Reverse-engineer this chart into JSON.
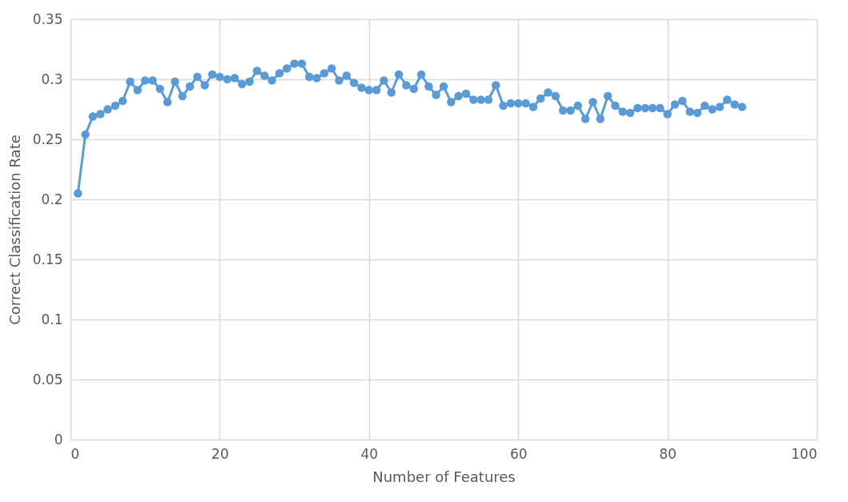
{
  "chart_data": {
    "type": "line",
    "xlabel": "Number of Features",
    "ylabel": "Correct Classification Rate",
    "x": [
      1,
      2,
      3,
      4,
      5,
      6,
      7,
      8,
      9,
      10,
      11,
      12,
      13,
      14,
      15,
      16,
      17,
      18,
      19,
      20,
      21,
      22,
      23,
      24,
      25,
      26,
      27,
      28,
      29,
      30,
      31,
      32,
      33,
      34,
      35,
      36,
      37,
      38,
      39,
      40,
      41,
      42,
      43,
      44,
      45,
      46,
      47,
      48,
      49,
      50,
      51,
      52,
      53,
      54,
      55,
      56,
      57,
      58,
      59,
      60,
      61,
      62,
      63,
      64,
      65,
      66,
      67,
      68,
      69,
      70,
      71,
      72,
      73,
      74,
      75,
      76,
      77,
      78,
      79,
      80,
      81,
      82,
      83,
      84,
      85,
      86,
      87,
      88,
      89,
      90
    ],
    "series": [
      {
        "color": "#5b9bd5",
        "values": [
          0.205,
          0.254,
          0.269,
          0.271,
          0.275,
          0.278,
          0.282,
          0.298,
          0.291,
          0.299,
          0.299,
          0.292,
          0.281,
          0.298,
          0.286,
          0.294,
          0.302,
          0.295,
          0.304,
          0.302,
          0.3,
          0.301,
          0.296,
          0.298,
          0.307,
          0.303,
          0.299,
          0.305,
          0.309,
          0.313,
          0.313,
          0.302,
          0.301,
          0.305,
          0.309,
          0.299,
          0.303,
          0.297,
          0.293,
          0.291,
          0.291,
          0.299,
          0.289,
          0.304,
          0.295,
          0.292,
          0.304,
          0.294,
          0.287,
          0.294,
          0.281,
          0.286,
          0.288,
          0.283,
          0.283,
          0.283,
          0.295,
          0.278,
          0.28,
          0.28,
          0.28,
          0.277,
          0.284,
          0.289,
          0.286,
          0.274,
          0.274,
          0.278,
          0.267,
          0.281,
          0.267,
          0.286,
          0.278,
          0.273,
          0.272,
          0.276,
          0.276,
          0.276,
          0.276,
          0.271,
          0.279,
          0.282,
          0.273,
          0.272,
          0.278,
          0.275,
          0.277,
          0.283,
          0.279,
          0.277
        ]
      }
    ],
    "xlim": [
      0,
      100
    ],
    "xticks": [
      0,
      20,
      40,
      60,
      80,
      100
    ],
    "ylim": [
      0,
      0.35
    ],
    "yticks": [
      0,
      0.05,
      0.1,
      0.15,
      0.2,
      0.25,
      0.3,
      0.35
    ],
    "grid": true,
    "marker": "circle",
    "line_style": "solid"
  }
}
